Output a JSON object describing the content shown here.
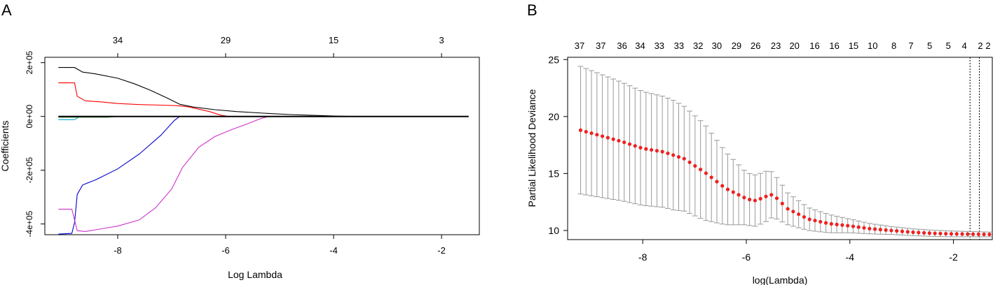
{
  "chart_data": [
    {
      "panel_label": "A",
      "type": "line",
      "xlabel": "Log Lambda",
      "ylabel": "Coefficients",
      "xlim": [
        -9.35,
        -1.3
      ],
      "ylim": [
        -440000,
        220000
      ],
      "x_ticks": [
        -8,
        -6,
        -4,
        -2
      ],
      "y_ticks": [
        {
          "value": 200000,
          "label": "2e+05"
        },
        {
          "value": 0,
          "label": "0e+00"
        },
        {
          "value": -200000,
          "label": "-2e+05"
        },
        {
          "value": -400000,
          "label": "-4e+05"
        }
      ],
      "top_axis": [
        {
          "x": -8,
          "label": "34"
        },
        {
          "x": -6,
          "label": "29"
        },
        {
          "x": -4,
          "label": "15"
        },
        {
          "x": -2,
          "label": "3"
        }
      ],
      "series": [
        {
          "color": "#000000",
          "points": [
            [
              -9.1,
              182000
            ],
            [
              -8.8,
              182000
            ],
            [
              -8.65,
              165000
            ],
            [
              -8.4,
              158000
            ],
            [
              -8.0,
              142000
            ],
            [
              -7.7,
              122000
            ],
            [
              -7.4,
              98000
            ],
            [
              -7.1,
              70000
            ],
            [
              -6.85,
              45000
            ],
            [
              -6.6,
              35000
            ],
            [
              -6.2,
              25000
            ],
            [
              -5.8,
              18000
            ],
            [
              -5.3,
              12000
            ],
            [
              -4.8,
              7000
            ],
            [
              -4.3,
              3500
            ],
            [
              -3.9,
              1000
            ],
            [
              -3.6,
              0
            ],
            [
              -1.5,
              0
            ]
          ]
        },
        {
          "color": "#ff0000",
          "points": [
            [
              -9.1,
              125000
            ],
            [
              -8.8,
              125000
            ],
            [
              -8.75,
              75000
            ],
            [
              -8.6,
              58000
            ],
            [
              -8.3,
              54000
            ],
            [
              -8.0,
              48000
            ],
            [
              -7.6,
              44000
            ],
            [
              -7.2,
              42000
            ],
            [
              -6.9,
              40000
            ],
            [
              -6.7,
              36000
            ],
            [
              -6.3,
              18000
            ],
            [
              -6.1,
              5000
            ],
            [
              -5.95,
              0
            ],
            [
              -1.5,
              0
            ]
          ]
        },
        {
          "color": "#0000cc",
          "points": [
            [
              -9.1,
              -438000
            ],
            [
              -8.85,
              -435000
            ],
            [
              -8.8,
              -395000
            ],
            [
              -8.75,
              -290000
            ],
            [
              -8.65,
              -255000
            ],
            [
              -8.4,
              -235000
            ],
            [
              -8.0,
              -195000
            ],
            [
              -7.6,
              -140000
            ],
            [
              -7.2,
              -70000
            ],
            [
              -6.95,
              -15000
            ],
            [
              -6.85,
              0
            ],
            [
              -1.5,
              0
            ]
          ]
        },
        {
          "color": "#cc33cc",
          "points": [
            [
              -9.1,
              -345000
            ],
            [
              -8.85,
              -345000
            ],
            [
              -8.75,
              -425000
            ],
            [
              -8.6,
              -428000
            ],
            [
              -8.3,
              -418000
            ],
            [
              -8.0,
              -408000
            ],
            [
              -7.6,
              -385000
            ],
            [
              -7.3,
              -340000
            ],
            [
              -7.0,
              -270000
            ],
            [
              -6.8,
              -190000
            ],
            [
              -6.5,
              -115000
            ],
            [
              -6.2,
              -75000
            ],
            [
              -5.9,
              -50000
            ],
            [
              -5.6,
              -28000
            ],
            [
              -5.35,
              -8000
            ],
            [
              -5.2,
              0
            ],
            [
              -1.5,
              0
            ]
          ]
        },
        {
          "color": "#00aacc",
          "points": [
            [
              -9.1,
              -12000
            ],
            [
              -8.8,
              -12000
            ],
            [
              -8.7,
              0
            ],
            [
              -1.5,
              0
            ]
          ]
        },
        {
          "color": "#228822",
          "points": [
            [
              -9.1,
              -3000
            ],
            [
              -8.2,
              -3000
            ],
            [
              -8.0,
              0
            ],
            [
              -1.5,
              0
            ]
          ]
        },
        {
          "color": "#000000",
          "points": [
            [
              -9.1,
              0
            ],
            [
              -1.5,
              0
            ]
          ]
        }
      ]
    },
    {
      "panel_label": "B",
      "type": "scatter",
      "xlabel": "log(Lambda)",
      "ylabel": "Partial Likelihood Deviance",
      "xlim": [
        -9.45,
        -1.25
      ],
      "ylim": [
        9.2,
        25.2
      ],
      "x_ticks": [
        -8,
        -6,
        -4,
        -2
      ],
      "y_ticks": [
        10,
        15,
        20,
        25
      ],
      "top_axis": [
        {
          "x": -9.22,
          "label": "37"
        },
        {
          "x": -8.81,
          "label": "37"
        },
        {
          "x": -8.4,
          "label": "36"
        },
        {
          "x": -8.05,
          "label": "34"
        },
        {
          "x": -7.68,
          "label": "33"
        },
        {
          "x": -7.3,
          "label": "33"
        },
        {
          "x": -6.93,
          "label": "32"
        },
        {
          "x": -6.57,
          "label": "30"
        },
        {
          "x": -6.19,
          "label": "29"
        },
        {
          "x": -5.82,
          "label": "26"
        },
        {
          "x": -5.43,
          "label": "23"
        },
        {
          "x": -5.07,
          "label": "20"
        },
        {
          "x": -4.68,
          "label": "16"
        },
        {
          "x": -4.3,
          "label": "16"
        },
        {
          "x": -3.93,
          "label": "15"
        },
        {
          "x": -3.56,
          "label": "10"
        },
        {
          "x": -3.15,
          "label": "8"
        },
        {
          "x": -2.82,
          "label": "7"
        },
        {
          "x": -2.46,
          "label": "5"
        },
        {
          "x": -2.1,
          "label": "5"
        },
        {
          "x": -1.79,
          "label": "4"
        },
        {
          "x": -1.48,
          "label": "2"
        },
        {
          "x": -1.2,
          "label": "2"
        }
      ],
      "vlines": [
        -1.68,
        -1.5
      ],
      "curve_knots": [
        [
          -9.2,
          18.8
        ],
        [
          -8.8,
          18.3
        ],
        [
          -8.4,
          17.8
        ],
        [
          -8.0,
          17.2
        ],
        [
          -7.6,
          16.9
        ],
        [
          -7.2,
          16.3
        ],
        [
          -6.8,
          15.1
        ],
        [
          -6.4,
          13.7
        ],
        [
          -6.0,
          12.8
        ],
        [
          -5.85,
          12.6
        ],
        [
          -5.65,
          12.9
        ],
        [
          -5.55,
          13.2
        ],
        [
          -5.45,
          13.0
        ],
        [
          -5.2,
          11.9
        ],
        [
          -4.8,
          11.0
        ],
        [
          -4.4,
          10.6
        ],
        [
          -4.0,
          10.4
        ],
        [
          -3.6,
          10.15
        ],
        [
          -3.2,
          10.0
        ],
        [
          -2.8,
          9.85
        ],
        [
          -2.4,
          9.75
        ],
        [
          -2.0,
          9.7
        ],
        [
          -1.2,
          9.65
        ]
      ],
      "error_knots": [
        [
          -9.2,
          5.6
        ],
        [
          -8.6,
          5.3
        ],
        [
          -8.0,
          5.0
        ],
        [
          -7.4,
          4.8
        ],
        [
          -6.8,
          4.2
        ],
        [
          -6.4,
          3.2
        ],
        [
          -6.0,
          2.3
        ],
        [
          -5.6,
          2.2
        ],
        [
          -5.2,
          1.4
        ],
        [
          -4.8,
          1.0
        ],
        [
          -4.4,
          0.8
        ],
        [
          -4.0,
          0.6
        ],
        [
          -3.6,
          0.45
        ],
        [
          -3.2,
          0.35
        ],
        [
          -2.8,
          0.3
        ],
        [
          -2.0,
          0.25
        ],
        [
          -1.2,
          0.2
        ]
      ],
      "n_points": 77,
      "point_color": "#ee2222",
      "error_color": "#999999"
    }
  ]
}
